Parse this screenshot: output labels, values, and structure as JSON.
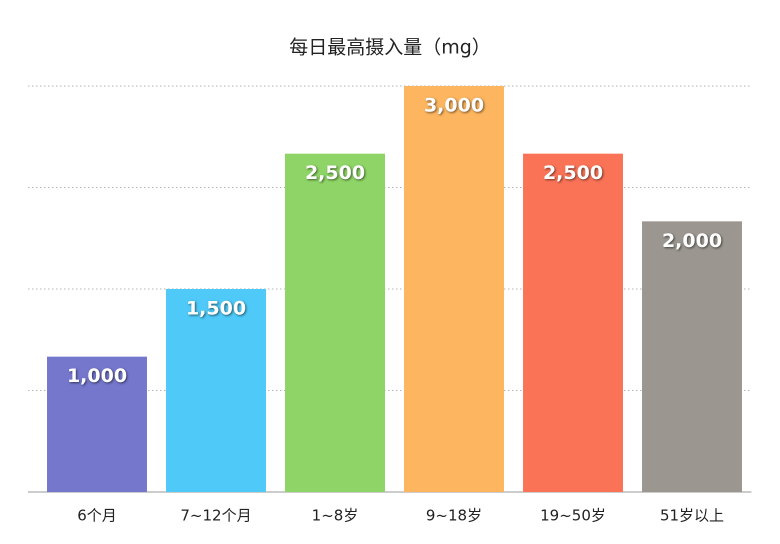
{
  "chart_data": {
    "type": "bar",
    "title": "每日最高摄入量（mg）",
    "categories": [
      "6个月",
      "7~12个月",
      "1~8岁",
      "9~18岁",
      "19~50岁",
      "51岁以上"
    ],
    "values": [
      1000,
      1500,
      2500,
      3000,
      2500,
      2000
    ],
    "value_labels": [
      "1,000",
      "1,500",
      "2,500",
      "3,000",
      "2,500",
      "2,000"
    ],
    "colors": [
      "#7477cc",
      "#4ec9f8",
      "#8ed466",
      "#fdb55f",
      "#fb7356",
      "#9b9790"
    ],
    "ylim": [
      0,
      3000
    ],
    "yticks": [
      0,
      750,
      1500,
      2250,
      3000
    ],
    "grid": true
  }
}
